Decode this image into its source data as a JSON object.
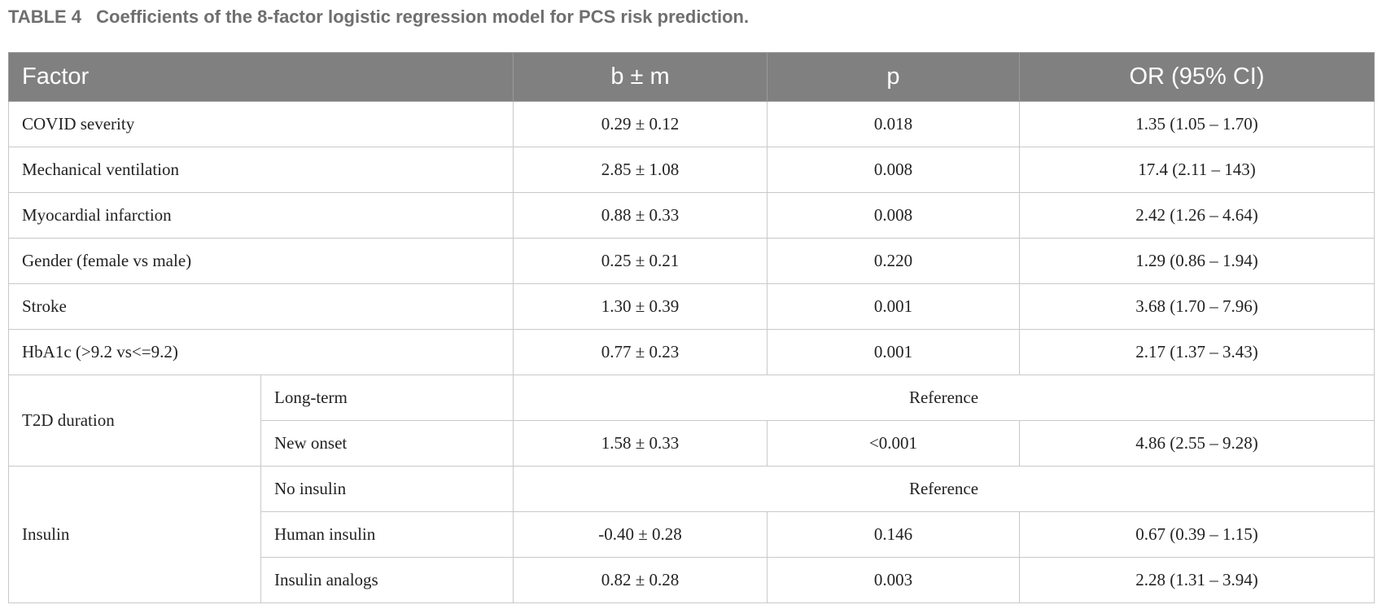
{
  "caption": {
    "label": "TABLE 4",
    "title": "Coefficients of the 8-factor logistic regression model for PCS risk prediction."
  },
  "headers": [
    "Factor",
    "b ± m",
    "p",
    "OR (95% CI)"
  ],
  "rows": [
    {
      "factor": "COVID severity",
      "b": "0.29 ± 0.12",
      "p": "0.018",
      "or": "1.35 (1.05 – 1.70)"
    },
    {
      "factor": "Mechanical ventilation",
      "b": "2.85 ± 1.08",
      "p": "0.008",
      "or": "17.4 (2.11 – 143)"
    },
    {
      "factor": "Myocardial infarction",
      "b": "0.88 ± 0.33",
      "p": "0.008",
      "or": "2.42 (1.26 – 4.64)"
    },
    {
      "factor": "Gender (female vs male)",
      "b": "0.25 ± 0.21",
      "p": "0.220",
      "or": "1.29 (0.86 – 1.94)"
    },
    {
      "factor": "Stroke",
      "b": "1.30 ± 0.39",
      "p": "0.001",
      "or": "3.68 (1.70 – 7.96)"
    },
    {
      "factor": "HbA1c (>9.2 vs<=9.2)",
      "b": "0.77 ± 0.23",
      "p": "0.001",
      "or": "2.17 (1.37 – 3.43)"
    }
  ],
  "t2d": {
    "factor": "T2D duration",
    "long_term": {
      "label": "Long-term",
      "reference": "Reference"
    },
    "new_onset": {
      "label": "New onset",
      "b": "1.58 ± 0.33",
      "p": "<0.001",
      "or": "4.86 (2.55 – 9.28)"
    }
  },
  "insulin": {
    "factor": "Insulin",
    "none": {
      "label": "No insulin",
      "reference": "Reference"
    },
    "human": {
      "label": "Human insulin",
      "b": "-0.40 ± 0.28",
      "p": "0.146",
      "or": "0.67 (0.39 – 1.15)"
    },
    "analogs": {
      "label": "Insulin analogs",
      "b": "0.82 ± 0.28",
      "p": "0.003",
      "or": "2.28 (1.31 – 3.94)"
    }
  }
}
